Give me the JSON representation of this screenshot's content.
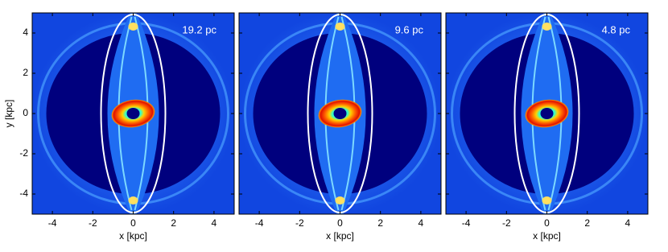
{
  "chart_data": [
    {
      "type": "image",
      "annotation": "19.2 pc",
      "xlabel": "x [kpc]",
      "ylabel": "y [kpc]",
      "show_ytick_labels": true,
      "xlim": [
        -5,
        5
      ],
      "ylim": [
        -5,
        5
      ],
      "xticks": [
        -4,
        -2,
        0,
        2,
        4
      ],
      "yticks": [
        -4,
        -2,
        0,
        2,
        4
      ]
    },
    {
      "type": "image",
      "annotation": "9.6 pc",
      "xlabel": "x [kpc]",
      "show_ytick_labels": false,
      "xlim": [
        -5,
        5
      ],
      "ylim": [
        -5,
        5
      ],
      "xticks": [
        -4,
        -2,
        0,
        2,
        4
      ],
      "yticks": [
        -4,
        -2,
        0,
        2,
        4
      ]
    },
    {
      "type": "image",
      "annotation": "4.8 pc",
      "xlabel": "x [kpc]",
      "show_ytick_labels": false,
      "xlim": [
        -5,
        5
      ],
      "ylim": [
        -5,
        5
      ],
      "xticks": [
        -4,
        -2,
        0,
        2,
        4
      ],
      "yticks": [
        -4,
        -2,
        0,
        2,
        4
      ]
    }
  ]
}
